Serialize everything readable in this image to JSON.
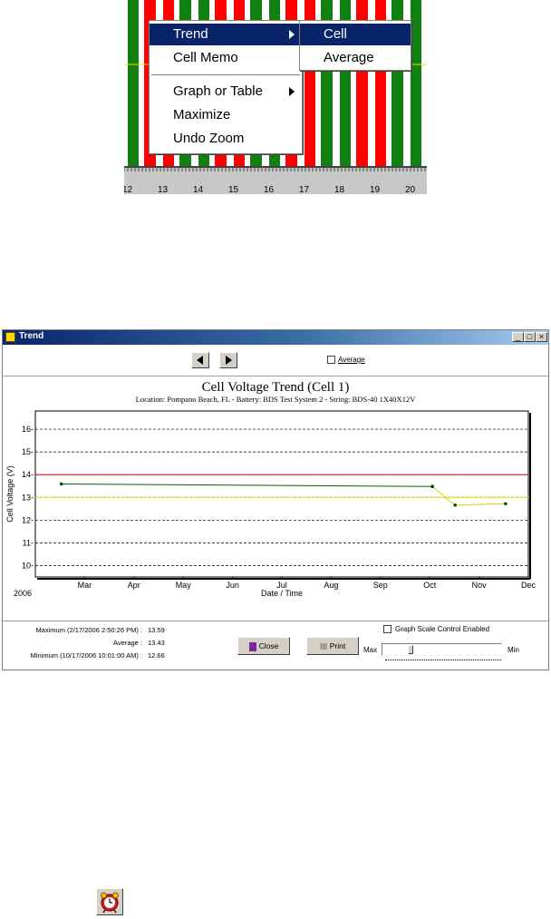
{
  "bar_strip": {
    "axis_labels": [
      "12",
      "13",
      "14",
      "15",
      "16",
      "17",
      "18",
      "19",
      "20"
    ],
    "bar_colors": [
      "#108010",
      "#ff0000",
      "#ffffff"
    ]
  },
  "context_menu": {
    "items": [
      {
        "label": "Trend",
        "has_submenu": true,
        "selected": true
      },
      {
        "label": "Cell Memo",
        "has_submenu": false
      },
      {
        "label": "Graph or Table",
        "has_submenu": true
      },
      {
        "label": "Maximize",
        "has_submenu": false
      },
      {
        "label": "Undo Zoom",
        "has_submenu": false
      }
    ],
    "submenu": [
      {
        "label": "Cell",
        "selected": true
      },
      {
        "label": "Average",
        "selected": false
      }
    ]
  },
  "window": {
    "title": "Trend",
    "controls": [
      "_",
      "□",
      "×"
    ],
    "average_checkbox_label": "Average",
    "average_checked": false
  },
  "chart_data": {
    "type": "line",
    "title": "Cell Voltage Trend (Cell 1)",
    "subtitle": "Location: Pompano Beach, FL - Battery: BDS Test System 2 - String: BDS-40 1X40X12V",
    "xlabel": "Date / Time",
    "ylabel": "Cell Voltage (V)",
    "year_label": "2006",
    "x_ticks": [
      "Mar",
      "Apr",
      "May",
      "Jun",
      "Jul",
      "Aug",
      "Sep",
      "Oct",
      "Nov",
      "Dec"
    ],
    "y_ticks": [
      "10-",
      "11-",
      "12-",
      "13-",
      "14-",
      "15-",
      "16-"
    ],
    "ylim": [
      9.5,
      16.8
    ],
    "grid": true,
    "reference_lines": [
      {
        "y": 14.0,
        "color": "#e00000"
      },
      {
        "y": 13.0,
        "color": "#e8e800"
      }
    ],
    "series": [
      {
        "color": "#006400",
        "points": [
          {
            "x": "2006-02-17",
            "y": 13.59
          },
          {
            "x": "2006-10-03",
            "y": 13.48
          }
        ]
      },
      {
        "color": "#e0d000",
        "points": [
          {
            "x": "2006-10-03",
            "y": 13.48
          },
          {
            "x": "2006-10-17",
            "y": 12.66
          },
          {
            "x": "2006-11-17",
            "y": 12.72
          }
        ]
      }
    ]
  },
  "stats": {
    "max_label": "Maximum (2/17/2006 2:50:26 PM) :",
    "max_value": "13.59",
    "avg_label": "Average :",
    "avg_value": "13.43",
    "min_label": "Minimum (10/17/2006 10:01:00 AM) :",
    "min_value": "12.66"
  },
  "buttons": {
    "close": "Close",
    "print": "Print"
  },
  "scale_control": {
    "checkbox_label": "Graph Scale Control Enabled",
    "checked": false,
    "max_label": "Max",
    "min_label": "Min"
  },
  "alarm_icon": "alarm-clock-icon"
}
